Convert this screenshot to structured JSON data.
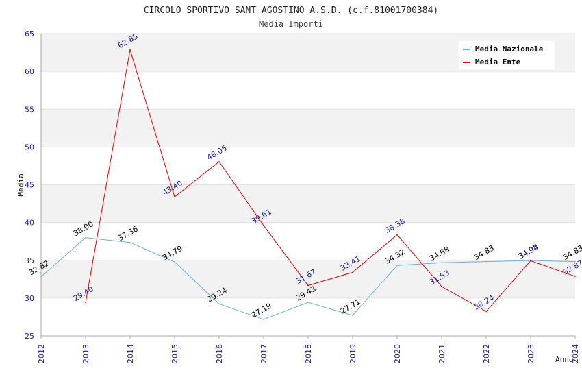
{
  "chart_data": {
    "type": "line",
    "title": "CIRCOLO SPORTIVO SANT AGOSTINO A.S.D. (c.f.81001700384)",
    "subtitle": "Media Importi",
    "xlabel": "Anno",
    "ylabel": "Media",
    "ylim": [
      25,
      65
    ],
    "yticks": [
      25,
      30,
      35,
      40,
      45,
      50,
      55,
      60,
      65
    ],
    "grid": true,
    "legend_position": "top-right",
    "x": [
      "2012",
      "2013",
      "2014",
      "2015",
      "2016",
      "2017",
      "2018",
      "2019",
      "2020",
      "2021",
      "2022",
      "2023",
      "2024"
    ],
    "series": [
      {
        "name": "Media Nazionale",
        "color": "#6aaee6",
        "label_color": "#000000",
        "values": [
          32.82,
          38.0,
          37.36,
          34.79,
          29.24,
          27.19,
          29.43,
          27.71,
          34.32,
          34.68,
          34.83,
          34.98,
          34.83
        ],
        "labels": [
          "32.82",
          "38.00",
          "37.36",
          "34.79",
          "29.24",
          "27.19",
          "29.43",
          "27.71",
          "34.32",
          "34.68",
          "34.83",
          "34.98",
          "34.83"
        ]
      },
      {
        "name": "Media Ente",
        "color": "#e00000",
        "label_color": "#1a1a8c",
        "values": [
          null,
          29.4,
          62.85,
          43.4,
          48.05,
          39.61,
          31.67,
          33.41,
          38.38,
          31.53,
          28.24,
          34.94,
          32.87
        ],
        "labels": [
          null,
          "29.40",
          "62.85",
          "43.40",
          "48.05",
          "39.61",
          "31.67",
          "33.41",
          "38.38",
          "31.53",
          "28.24",
          "34.94",
          "32.87"
        ]
      }
    ]
  }
}
